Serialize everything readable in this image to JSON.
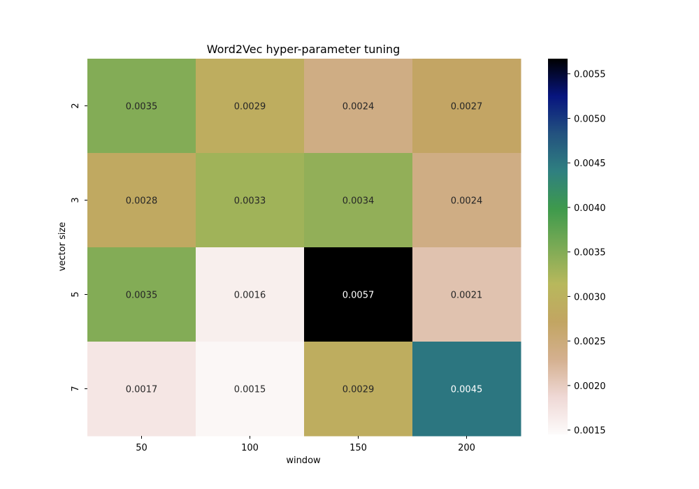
{
  "chart_data": {
    "type": "heatmap",
    "title": "Word2Vec hyper-parameter tuning",
    "xlabel": "window",
    "ylabel": "vector size",
    "x_categories": [
      "50",
      "100",
      "150",
      "200"
    ],
    "y_categories": [
      "2",
      "3",
      "5",
      "7"
    ],
    "values": [
      [
        0.0035,
        0.0029,
        0.0024,
        0.0027
      ],
      [
        0.0028,
        0.0033,
        0.0034,
        0.0024
      ],
      [
        0.0035,
        0.0016,
        0.0057,
        0.0021
      ],
      [
        0.0017,
        0.0015,
        0.0029,
        0.0045
      ]
    ],
    "value_labels": [
      [
        "0.0035",
        "0.0029",
        "0.0024",
        "0.0027"
      ],
      [
        "0.0028",
        "0.0033",
        "0.0034",
        "0.0024"
      ],
      [
        "0.0035",
        "0.0016",
        "0.0057",
        "0.0021"
      ],
      [
        "0.0017",
        "0.0015",
        "0.0029",
        "0.0045"
      ]
    ],
    "colorbar": {
      "min": 0.00145,
      "max": 0.00567,
      "ticks": [
        "0.0015",
        "0.0020",
        "0.0025",
        "0.0030",
        "0.0035",
        "0.0040",
        "0.0045",
        "0.0050",
        "0.0055"
      ],
      "colormap": "gist_earth_r",
      "colors": [
        "#fdfbfb",
        "#efd8d5",
        "#d4b08f",
        "#c2a562",
        "#b8b85c",
        "#7aaa55",
        "#3e9a4c",
        "#2f8080",
        "#23527f",
        "#07157f",
        "#000000"
      ]
    },
    "grid": false,
    "legend": "colorbar-right"
  }
}
